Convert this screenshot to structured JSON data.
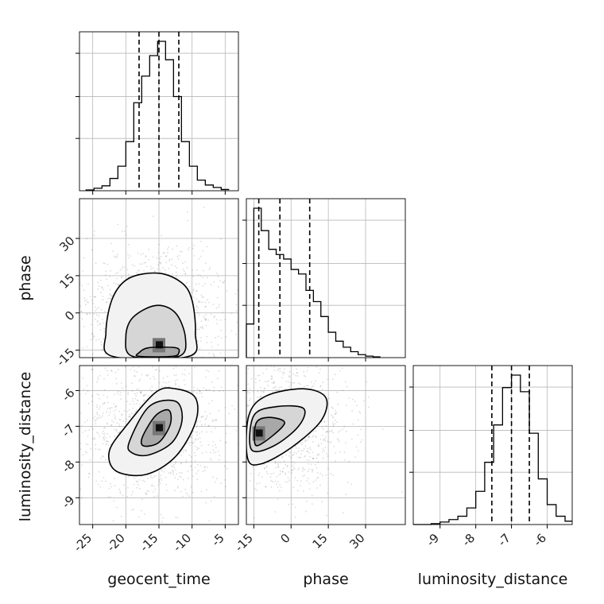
{
  "chart_data": {
    "type": "corner",
    "parameters": [
      "geocent_time",
      "phase",
      "luminosity_distance"
    ],
    "axis_labels": {
      "x": [
        "geocent_time",
        "phase",
        "luminosity_distance"
      ],
      "y": [
        "phase",
        "luminosity_distance"
      ]
    },
    "ranges": {
      "geocent_time": [
        -27,
        -3
      ],
      "phase": [
        -18,
        46
      ],
      "luminosity_distance": [
        -9.75,
        -5.3
      ]
    },
    "ticks": {
      "geocent_time": [
        "-25",
        "-20",
        "-15",
        "-10",
        "-5"
      ],
      "phase": [
        "-15",
        "0",
        "15",
        "30"
      ],
      "luminosity_distance": [
        "-9",
        "-8",
        "-7",
        "-6"
      ]
    },
    "quantiles": {
      "geocent_time": [
        -18.0,
        -15.0,
        -12.0
      ],
      "phase": [
        -13.0,
        -4.5,
        7.5
      ],
      "luminosity_distance": [
        -7.55,
        -7.0,
        -6.5
      ]
    },
    "histograms": {
      "geocent_time": {
        "bins": [
          -26.0,
          -24.8,
          -23.6,
          -22.4,
          -21.2,
          -20.0,
          -18.8,
          -17.6,
          -16.4,
          -15.2,
          -14.0,
          -12.8,
          -11.6,
          -10.4,
          -9.2,
          -8.0,
          -6.8,
          -5.6,
          -4.4
        ],
        "counts": [
          0.2,
          0.6,
          1.2,
          3.0,
          6.0,
          12.0,
          21.5,
          28.0,
          33.0,
          36.5,
          32.0,
          23.0,
          12.0,
          6.0,
          2.6,
          1.4,
          0.8,
          0.3
        ]
      },
      "phase": {
        "bins": [
          -18,
          -15,
          -12,
          -9,
          -6,
          -3,
          0,
          3,
          6,
          9,
          12,
          15,
          18,
          21,
          24,
          27,
          30,
          33,
          36
        ],
        "counts": [
          4.5,
          20.0,
          17.0,
          14.5,
          13.8,
          13.2,
          11.8,
          11.2,
          9.0,
          7.5,
          5.5,
          3.4,
          2.2,
          1.4,
          0.8,
          0.4,
          0.2,
          0.1
        ]
      },
      "luminosity_distance": {
        "bins": [
          -9.75,
          -9.5,
          -9.25,
          -9.0,
          -8.75,
          -8.5,
          -8.25,
          -8.0,
          -7.75,
          -7.5,
          -7.25,
          -7.0,
          -6.75,
          -6.5,
          -6.25,
          -6.0,
          -5.75,
          -5.5,
          -5.3
        ],
        "counts": [
          0.0,
          0.0,
          0.1,
          0.3,
          0.6,
          1.0,
          2.0,
          4.0,
          7.5,
          12.0,
          16.5,
          18.0,
          16.0,
          11.0,
          5.5,
          2.4,
          1.0,
          0.4
        ]
      }
    },
    "hist2d": [
      {
        "x": "geocent_time",
        "y": "phase",
        "row": 1,
        "col": 0,
        "center": [
          -15.0,
          -13.0
        ],
        "contours": [
          [
            [
              -18.0,
              -17.5
            ],
            [
              -13.0,
              -17.5
            ],
            [
              -12.0,
              -16.0
            ],
            [
              -12.5,
              -14.0
            ],
            [
              -16.5,
              -14.0
            ],
            [
              -18.0,
              -16.0
            ]
          ],
          [
            [
              -19.0,
              -17.5
            ],
            [
              -12.0,
              -17.5
            ],
            [
              -11.0,
              -10.0
            ],
            [
              -12.5,
              0.0
            ],
            [
              -15.5,
              3.0
            ],
            [
              -19.0,
              -2.0
            ],
            [
              -20.0,
              -10.0
            ]
          ],
          [
            [
              -22.0,
              -17.5
            ],
            [
              -10.5,
              -17.5
            ],
            [
              -9.5,
              -8.0
            ],
            [
              -10.0,
              5.0
            ],
            [
              -11.5,
              12.0
            ],
            [
              -15.0,
              16.0
            ],
            [
              -19.5,
              14.0
            ],
            [
              -22.0,
              6.0
            ],
            [
              -23.0,
              -8.0
            ]
          ]
        ]
      },
      {
        "x": "geocent_time",
        "y": "luminosity_distance",
        "row": 2,
        "col": 0,
        "center": [
          -15.0,
          -7.05
        ],
        "contours": [
          [
            [
              -17.5,
              -7.3
            ],
            [
              -15.5,
              -6.7
            ],
            [
              -13.5,
              -6.55
            ],
            [
              -13.3,
              -6.95
            ],
            [
              -15.0,
              -7.45
            ],
            [
              -17.3,
              -7.55
            ]
          ],
          [
            [
              -19.5,
              -7.45
            ],
            [
              -16.5,
              -6.45
            ],
            [
              -12.5,
              -6.3
            ],
            [
              -11.5,
              -6.8
            ],
            [
              -13.0,
              -7.45
            ],
            [
              -16.5,
              -7.8
            ],
            [
              -19.0,
              -7.75
            ]
          ],
          [
            [
              -22.5,
              -7.7
            ],
            [
              -20.0,
              -7.0
            ],
            [
              -15.5,
              -6.05
            ],
            [
              -12.5,
              -5.95
            ],
            [
              -9.5,
              -6.2
            ],
            [
              -9.5,
              -6.9
            ],
            [
              -12.5,
              -7.85
            ],
            [
              -17.0,
              -8.35
            ],
            [
              -21.5,
              -8.25
            ]
          ]
        ]
      },
      {
        "x": "phase",
        "y": "luminosity_distance",
        "row": 2,
        "col": 1,
        "center": [
          -13.0,
          -7.2
        ],
        "contours": [
          [
            [
              -14.5,
              -7.5
            ],
            [
              -14.0,
              -6.9
            ],
            [
              -9.0,
              -6.75
            ],
            [
              -3.0,
              -6.85
            ],
            [
              -4.0,
              -7.05
            ],
            [
              -11.0,
              -7.45
            ]
          ],
          [
            [
              -16.0,
              -7.65
            ],
            [
              -15.0,
              -6.7
            ],
            [
              -6.0,
              -6.45
            ],
            [
              5.0,
              -6.5
            ],
            [
              3.0,
              -7.0
            ],
            [
              -7.0,
              -7.55
            ]
          ],
          [
            [
              -17.5,
              -7.9
            ],
            [
              -17.0,
              -6.7
            ],
            [
              -10.0,
              -6.15
            ],
            [
              5.0,
              -5.95
            ],
            [
              14.0,
              -6.2
            ],
            [
              12.0,
              -6.85
            ],
            [
              0.0,
              -7.6
            ],
            [
              -12.0,
              -8.05
            ]
          ]
        ]
      }
    ],
    "grid": true
  }
}
